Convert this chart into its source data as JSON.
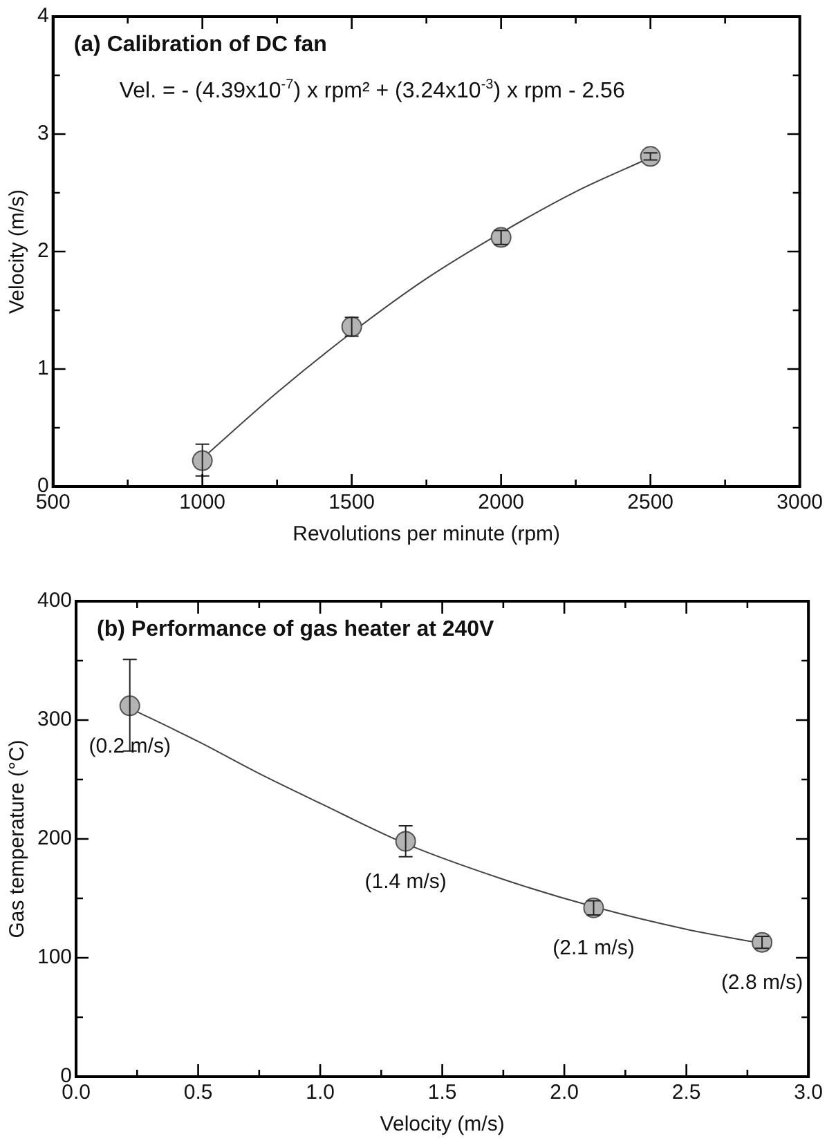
{
  "chart_data": [
    {
      "type": "scatter",
      "title": "(a) Calibration of DC fan",
      "xlabel": "Revolutions per minute (rpm)",
      "ylabel": "Velocity (m/s)",
      "annotations": [
        "Vel. = - (4.39x10$^{-7}$) x rpm² + (3.24x10$^{-3}$) x rpm - 2.56"
      ],
      "x": [
        1000,
        1500,
        2000,
        2500
      ],
      "series": [
        {
          "color": "#b4b4b4",
          "marker": "circle",
          "values": [
            0.22,
            1.36,
            2.12,
            2.81
          ],
          "errors": [
            [
              0.09,
              0.36
            ],
            0.08,
            0.06,
            0.03
          ]
        },
        {
          "type": "line",
          "marker": "none",
          "color": "#444444",
          "x": [
            1000,
            1250,
            1500,
            1750,
            2000,
            2250,
            2500
          ],
          "values": [
            0.24,
            0.8,
            1.31,
            1.77,
            2.16,
            2.51,
            2.8
          ]
        }
      ],
      "xlim": [
        500,
        3000
      ],
      "xticks": [
        500,
        {
          "value": 750,
          "label": null
        },
        1000,
        {
          "value": 1250,
          "label": null
        },
        1500,
        {
          "value": 1750,
          "label": null
        },
        2000,
        {
          "value": 2250,
          "label": null
        },
        2500,
        {
          "value": 2750,
          "label": null
        },
        3000
      ],
      "ylim": [
        0,
        4
      ],
      "yticks": [
        0,
        {
          "value": 0.5,
          "label": null
        },
        1,
        {
          "value": 1.5,
          "label": null
        },
        2,
        {
          "value": 2.5,
          "label": null
        },
        3,
        {
          "value": 3.5,
          "label": null
        },
        4
      ],
      "grid": false,
      "legend": false
    },
    {
      "type": "scatter",
      "title": "(b) Performance of gas heater at 240V",
      "xlabel": "Velocity (m/s)",
      "ylabel": "Gas temperature (°C)",
      "annotations": [
        {
          "text": "(0.2 m/s)",
          "x": 0.22,
          "y": 312
        },
        {
          "text": "(1.4 m/s)",
          "x": 1.35,
          "y": 198
        },
        {
          "text": "(2.1 m/s)",
          "x": 2.12,
          "y": 142
        },
        {
          "text": "(2.8 m/s)",
          "x": 2.81,
          "y": 113
        }
      ],
      "x": [
        0.22,
        1.35,
        2.12,
        2.81
      ],
      "series": [
        {
          "color": "#b4b4b4",
          "marker": "circle",
          "values": [
            312,
            198,
            142,
            113
          ],
          "errors": [
            [
              274,
              351
            ],
            [
              185,
              211
            ],
            6,
            5
          ]
        },
        {
          "type": "line",
          "marker": "none",
          "color": "#444444",
          "x": [
            0.22,
            0.5,
            0.75,
            1.0,
            1.35,
            1.75,
            2.12,
            2.5,
            2.81
          ],
          "values": [
            310,
            282,
            255,
            230,
            196,
            166,
            143,
            124,
            112
          ]
        }
      ],
      "xlim": [
        0,
        3
      ],
      "xticks": [
        {
          "value": 0,
          "label": "0.0"
        },
        {
          "value": 0.25,
          "label": null
        },
        0.5,
        {
          "value": 0.75,
          "label": null
        },
        {
          "value": 1,
          "label": "1.0"
        },
        {
          "value": 1.25,
          "label": null
        },
        1.5,
        {
          "value": 1.75,
          "label": null
        },
        {
          "value": 2,
          "label": "2.0"
        },
        {
          "value": 2.25,
          "label": null
        },
        2.5,
        {
          "value": 2.75,
          "label": null
        },
        {
          "value": 3,
          "label": "3.0"
        }
      ],
      "ylim": [
        0,
        400
      ],
      "yticks": [
        0,
        {
          "value": 50,
          "label": null
        },
        100,
        {
          "value": 150,
          "label": null
        },
        200,
        {
          "value": 250,
          "label": null
        },
        300,
        {
          "value": 350,
          "label": null
        },
        400
      ],
      "grid": false,
      "legend": false
    }
  ]
}
